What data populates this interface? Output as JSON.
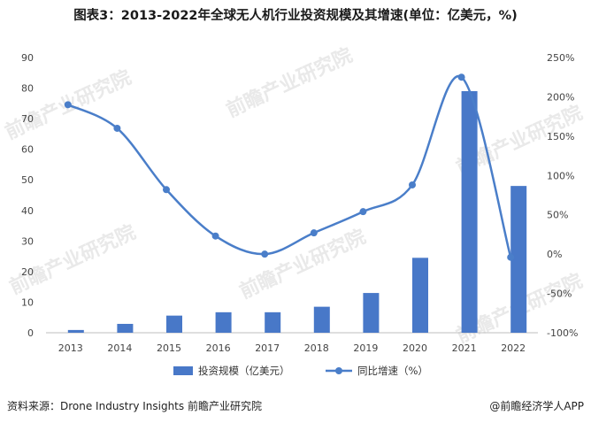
{
  "header": {
    "title": "图表3：2013-2022年全球无人机行业投资规模及其增速(单位：亿美元，%)"
  },
  "footer": {
    "source": "资料来源：Drone Industry Insights 前瞻产业研究院",
    "credit": "@前瞻经济学人APP"
  },
  "watermark": {
    "text": "前瞻产业研究院"
  },
  "colors": {
    "bar": "#4878c8",
    "line": "#4a7ec9"
  },
  "chart_data": {
    "type": "bar+line",
    "categories": [
      "2013",
      "2014",
      "2015",
      "2016",
      "2017",
      "2018",
      "2019",
      "2020",
      "2021",
      "2022"
    ],
    "series": [
      {
        "name": "投资规模（亿美元）",
        "type": "bar",
        "axis": "left",
        "values": [
          0.9,
          2.9,
          5.6,
          6.7,
          6.7,
          8.5,
          13,
          24.5,
          79,
          48
        ]
      },
      {
        "name": "同比增速（%）",
        "type": "line",
        "axis": "right",
        "values": [
          190,
          160,
          82,
          23,
          0,
          27,
          54,
          88,
          225,
          -4
        ]
      }
    ],
    "y_left": {
      "min": 0,
      "max": 90,
      "step": 10,
      "ticks": [
        "0",
        "10",
        "20",
        "30",
        "40",
        "50",
        "60",
        "70",
        "80",
        "90"
      ]
    },
    "y_right": {
      "min": -100,
      "max": 250,
      "step": 50,
      "ticks": [
        "-100%",
        "-50%",
        "0%",
        "50%",
        "100%",
        "150%",
        "200%",
        "250%"
      ]
    },
    "legend": {
      "position": "bottom"
    },
    "grid": false
  }
}
